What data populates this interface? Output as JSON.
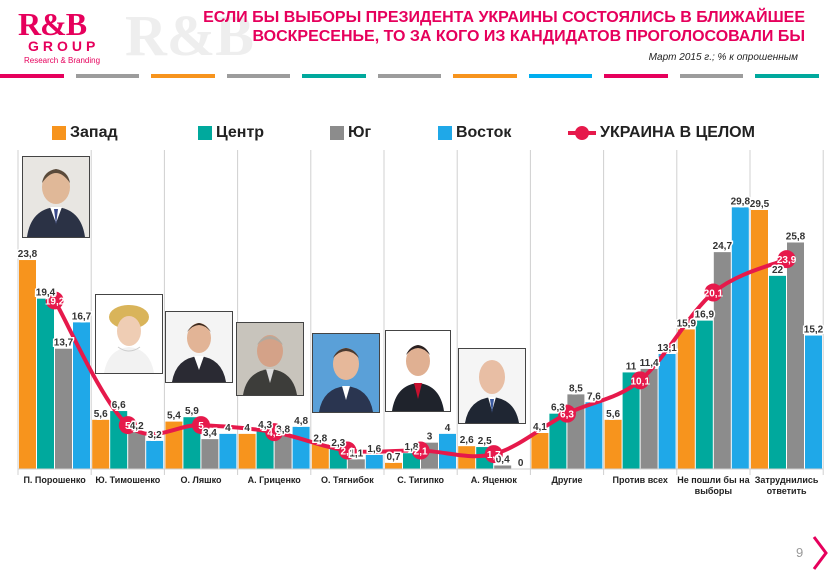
{
  "logo": {
    "mark": "R&B",
    "group": "GROUP",
    "tagline": "Research & Branding"
  },
  "watermark": "R&B",
  "header": {
    "title_line1": "ЕСЛИ БЫ ВЫБОРЫ ПРЕЗИДЕНТА УКРАИНЫ СОСТОЯЛИСЬ В БЛИЖАЙШЕЕ",
    "title_line2": "ВОСКРЕСЕНЬЕ, ТО ЗА КОГО ИЗ КАНДИДАТОВ ПРОГОЛОСОВАЛИ БЫ",
    "subtitle": "Март 2015 г.;  % к опрошенным"
  },
  "stripe_colors": [
    "#e6005c",
    "#9c9c9c",
    "#f7941d",
    "#9c9c9c",
    "#00a99d",
    "#9c9c9c",
    "#f7941d",
    "#00aeef",
    "#e6005c",
    "#9c9c9c",
    "#00a99d"
  ],
  "page_number": "9",
  "colors": {
    "zapad": "#f7941d",
    "centr": "#00a99d",
    "yug": "#8c8c8c",
    "vostok": "#1fa8e8",
    "ukraina": "#e6194b"
  },
  "photo_icons": [
    "portrait-poroshenko-icon",
    "portrait-timoshenko-icon",
    "portrait-lyashko-icon",
    "portrait-grytsenko-icon",
    "portrait-tyagnybok-icon",
    "portrait-tigipko-icon",
    "portrait-yatsenyuk-icon"
  ],
  "chart_data": {
    "type": "bar",
    "categories": [
      "П. Порошенко",
      "Ю. Тимошенко",
      "О. Ляшко",
      "А. Гриценко",
      "О. Тягнибок",
      "С. Тигипко",
      "А. Яценюк",
      "Другие",
      "Против всех",
      "Не пошли бы на выборы",
      "Затруднились ответить"
    ],
    "category_lines": [
      [
        "П. Порошенко"
      ],
      [
        "Ю. Тимошенко"
      ],
      [
        "О. Ляшко"
      ],
      [
        "А. Гриценко"
      ],
      [
        "О. Тягнибок"
      ],
      [
        "С. Тигипко"
      ],
      [
        "А. Яценюк"
      ],
      [
        "Другие"
      ],
      [
        "Против всех"
      ],
      [
        "Не пошли бы на",
        "выборы"
      ],
      [
        "Затруднились",
        "ответить"
      ]
    ],
    "series": [
      {
        "name": "Запад",
        "values": [
          23.8,
          5.6,
          5.4,
          4.0,
          2.8,
          0.7,
          2.6,
          4.1,
          5.6,
          15.9,
          29.5
        ]
      },
      {
        "name": "Центр",
        "values": [
          19.4,
          6.6,
          5.9,
          4.3,
          2.3,
          1.8,
          2.5,
          6.3,
          11.0,
          16.9,
          22.0
        ]
      },
      {
        "name": "Юг",
        "values": [
          13.7,
          4.2,
          3.4,
          3.8,
          1.1,
          3.0,
          0.4,
          8.5,
          11.4,
          24.7,
          25.8
        ]
      },
      {
        "name": "Восток",
        "values": [
          16.7,
          3.2,
          4.0,
          4.8,
          1.6,
          4.0,
          0.0,
          7.6,
          13.1,
          29.8,
          15.2
        ]
      }
    ],
    "series_labels": [
      [
        "23,8",
        "5,6",
        "5,4",
        "4",
        "2,8",
        "0,7",
        "2,6",
        "4,1",
        "5,6",
        "15,9",
        "29,5"
      ],
      [
        "19,4",
        "6,6",
        "5,9",
        "4,3",
        "2,3",
        "1,8",
        "2,5",
        "6,3",
        "11",
        "16,9",
        "22"
      ],
      [
        "13,7",
        "4,2",
        "3,4",
        "3,8",
        "1,1",
        "3",
        "0,4",
        "8,5",
        "11,4",
        "24,7",
        "25,8"
      ],
      [
        "16,7",
        "3,2",
        "4",
        "4,8",
        "1,6",
        "4",
        "0",
        "7,6",
        "13,1",
        "29,8",
        "15,2"
      ]
    ],
    "line": {
      "name": "УКРАИНА В ЦЕЛОМ",
      "values": [
        19.2,
        5.0,
        5.0,
        4.2,
        2.1,
        2.1,
        1.7,
        6.3,
        10.1,
        20.1,
        23.9
      ],
      "labels": [
        "19,2",
        "5",
        "5",
        "4,2",
        "2,1",
        "2,1",
        "1,7",
        "6,3",
        "10,1",
        "20,1",
        "23,9"
      ]
    },
    "ylim": [
      0,
      32
    ],
    "legend_position": "top",
    "grid": false,
    "xlabel": "",
    "ylabel": ""
  }
}
